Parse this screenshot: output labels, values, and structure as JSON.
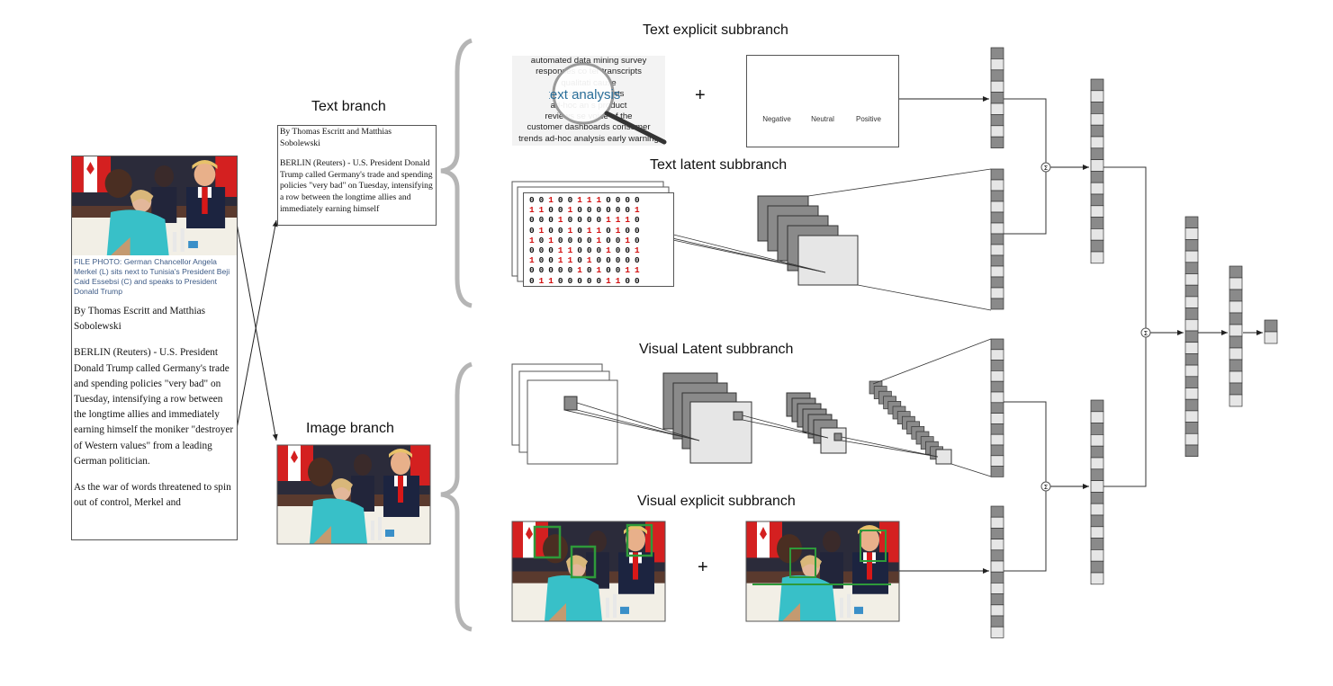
{
  "labels": {
    "text_branch": "Text branch",
    "image_branch": "Image branch",
    "text_explicit": "Text explicit subbranch",
    "text_latent": "Text latent subbranch",
    "visual_latent": "Visual Latent subbranch",
    "visual_explicit": "Visual explicit subbranch",
    "plus": "+",
    "sum_symbol": "Σ"
  },
  "article": {
    "caption": "FILE PHOTO: German Chancellor Angela Merkel (L) sits next to Tunisia's President Beji Caid Essebsi (C) and speaks to President Donald Trump",
    "byline": "By Thomas Escritt and Matthias Sobolewski",
    "para1": "BERLIN (Reuters) - U.S. President Donald Trump called Germany's trade and spending policies \"very bad\" on Tuesday, intensifying a row between the longtime allies and immediately earning himself the moniker \"destroyer of Western values\" from a leading German politician.",
    "para2": "As the war of words threatened to spin out of control, Merkel and"
  },
  "text_snippet": {
    "byline": "By Thomas Escritt and Matthias Sobolewski",
    "para": "BERLIN (Reuters) - U.S. President Donald Trump called Germany's trade and spending policies \"very bad\" on Tuesday, intensifying a row between the longtime allies and immediately earning himself"
  },
  "text_analysis_cloud": {
    "lines": [
      "automated data mining survey",
      "responses co           ter transcripts",
      "qualitati                          cause",
      "classificati                    insights",
      "ad-hoc an                  s product",
      "reviews se                   voice of the",
      "customer dashboards consumer",
      "trends ad-hoc analysis early warning"
    ],
    "magnifier_text": "text analysis"
  },
  "sentiment": {
    "negative": "Negative",
    "neutral": "Neutral",
    "positive": "Positive",
    "colors": {
      "negative": "#e0394b",
      "neutral": "#f3c81e",
      "positive": "#5bbf3c"
    }
  },
  "binary_matrix": [
    "0 0 1 0 0 1 1 1 0 0 0 0",
    "1 1 0 0 1 0 0 0 0 0 0 1",
    "0 0 0 1 0 0 0 0 1 1 1 0",
    "0 1 0 0 1 0 1 1 0 1 0 0",
    "1 0 1 0 0 0 0 1 0 0 1 0",
    "0 0 0 1 1 0 0 0 1 0 0 1",
    "1 0 0 1 1 0 1 0 0 0 0 0",
    "0 0 0 0 0 1 0 1 0 0 1 1",
    "0 1 1 0 0 0 0 0 1 1 0 0"
  ],
  "colors": {
    "feature_dark": "#8a8a8a",
    "feature_light": "#e6e6e6",
    "detection_box": "#2e9a3a",
    "brace": "#b5b5b5"
  }
}
